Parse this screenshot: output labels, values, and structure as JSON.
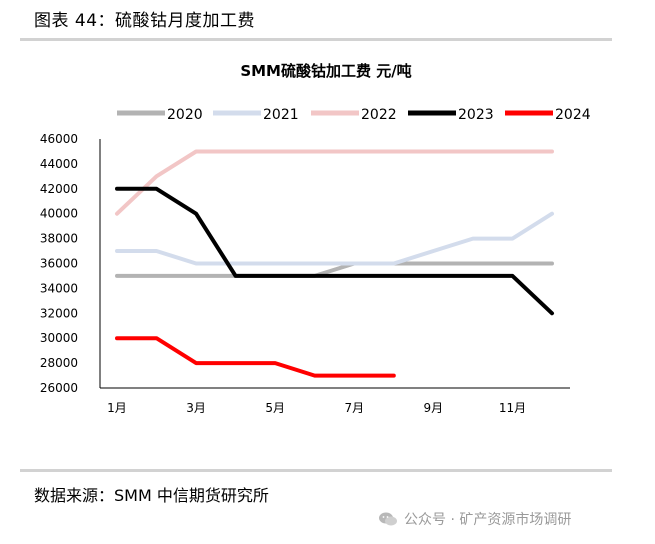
{
  "figure_title": "图表 44：硫酸钴月度加工费",
  "source": "数据来源：SMM 中信期货研究所",
  "watermark": "公众号 · 矿产资源市场调研",
  "chart_data": {
    "type": "line",
    "title": "SMM硫酸钴加工费   元/吨",
    "xlabel": "",
    "ylabel": "",
    "categories": [
      "1月",
      "2月",
      "3月",
      "4月",
      "5月",
      "6月",
      "7月",
      "8月",
      "9月",
      "10月",
      "11月",
      "12月"
    ],
    "x_tick_labels": [
      "1月",
      "3月",
      "5月",
      "7月",
      "9月",
      "11月"
    ],
    "y_ticks": [
      26000,
      28000,
      30000,
      32000,
      34000,
      36000,
      38000,
      40000,
      42000,
      44000,
      46000
    ],
    "ylim": [
      26000,
      46000
    ],
    "legend_position": "top",
    "series": [
      {
        "name": "2020",
        "color": "#b3b3b3",
        "values": [
          35000,
          35000,
          35000,
          35000,
          35000,
          35000,
          36000,
          36000,
          36000,
          36000,
          36000,
          36000
        ]
      },
      {
        "name": "2021",
        "color": "#d3dcec",
        "values": [
          37000,
          37000,
          36000,
          36000,
          36000,
          36000,
          36000,
          36000,
          37000,
          38000,
          38000,
          40000
        ]
      },
      {
        "name": "2022",
        "color": "#f2c6c6",
        "values": [
          40000,
          43000,
          45000,
          45000,
          45000,
          45000,
          45000,
          45000,
          45000,
          45000,
          45000,
          45000
        ]
      },
      {
        "name": "2023",
        "color": "#000000",
        "values": [
          42000,
          42000,
          40000,
          35000,
          35000,
          35000,
          35000,
          35000,
          35000,
          35000,
          35000,
          32000
        ]
      },
      {
        "name": "2024",
        "color": "#ff0000",
        "values": [
          30000,
          30000,
          28000,
          28000,
          28000,
          27000,
          27000,
          27000,
          null,
          null,
          null,
          null
        ]
      }
    ]
  }
}
